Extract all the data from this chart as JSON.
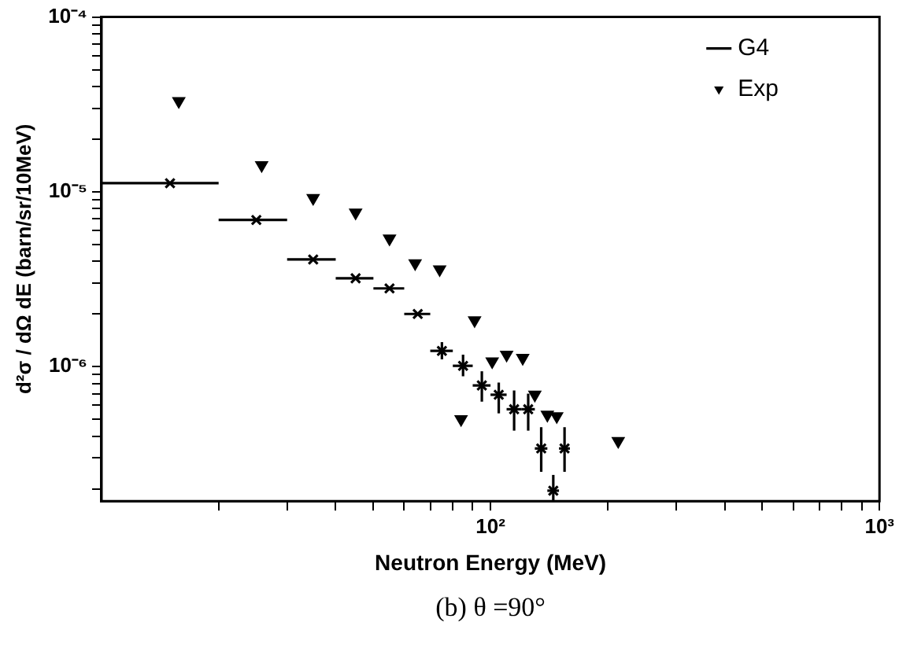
{
  "chart_data": {
    "type": "scatter",
    "xlabel": "Neutron Energy (MeV)",
    "ylabel": "d²σ / dΩ dE (barn/sr/10MeV)",
    "log": "xy",
    "grid": false,
    "legend": "top right",
    "xlim": [
      10,
      1000
    ],
    "ylim": [
      1.7e-07,
      0.0001
    ],
    "xticks": [
      {
        "value": 20,
        "label": null
      },
      {
        "value": 30,
        "label": null
      },
      {
        "value": 40,
        "label": null
      },
      {
        "value": 50,
        "label": null
      },
      {
        "value": 60,
        "label": null
      },
      {
        "value": 70,
        "label": null
      },
      {
        "value": 80,
        "label": null
      },
      {
        "value": 90,
        "label": null
      },
      {
        "value": 100,
        "label": "10²"
      },
      {
        "value": 200,
        "label": null
      },
      {
        "value": 300,
        "label": null
      },
      {
        "value": 400,
        "label": null
      },
      {
        "value": 500,
        "label": null
      },
      {
        "value": 600,
        "label": null
      },
      {
        "value": 700,
        "label": null
      },
      {
        "value": 800,
        "label": null
      },
      {
        "value": 900,
        "label": null
      },
      {
        "value": 1000,
        "label": "10³"
      }
    ],
    "yticks": [
      {
        "value": 2e-07,
        "label": null
      },
      {
        "value": 3e-07,
        "label": null
      },
      {
        "value": 4e-07,
        "label": null
      },
      {
        "value": 5e-07,
        "label": null
      },
      {
        "value": 6e-07,
        "label": null
      },
      {
        "value": 7e-07,
        "label": null
      },
      {
        "value": 8e-07,
        "label": null
      },
      {
        "value": 9e-07,
        "label": null
      },
      {
        "value": 1e-06,
        "label": "10⁻⁶"
      },
      {
        "value": 2e-06,
        "label": null
      },
      {
        "value": 3e-06,
        "label": null
      },
      {
        "value": 4e-06,
        "label": null
      },
      {
        "value": 5e-06,
        "label": null
      },
      {
        "value": 6e-06,
        "label": null
      },
      {
        "value": 7e-06,
        "label": null
      },
      {
        "value": 8e-06,
        "label": null
      },
      {
        "value": 9e-06,
        "label": null
      },
      {
        "value": 1e-05,
        "label": "10⁻⁵"
      },
      {
        "value": 2e-05,
        "label": null
      },
      {
        "value": 3e-05,
        "label": null
      },
      {
        "value": 4e-05,
        "label": null
      },
      {
        "value": 5e-05,
        "label": null
      },
      {
        "value": 6e-05,
        "label": null
      },
      {
        "value": 7e-05,
        "label": null
      },
      {
        "value": 8e-05,
        "label": null
      },
      {
        "value": 9e-05,
        "label": null
      },
      {
        "value": 0.0001,
        "label": "10⁻⁴"
      }
    ],
    "annotations": [
      "(b) θ =90°"
    ],
    "series": [
      {
        "name": "G4",
        "color": "#000000",
        "marker": "cross",
        "x": [
          15,
          25,
          35,
          45,
          55,
          65,
          75,
          85,
          95,
          105,
          115,
          125,
          135,
          145,
          155
        ],
        "values": [
          1.12e-05,
          6.9e-06,
          4.1e-06,
          3.2e-06,
          2.8e-06,
          2e-06,
          1.23e-06,
          1.01e-06,
          7.8e-07,
          6.9e-07,
          5.7e-07,
          5.7e-07,
          3.4e-07,
          1.95e-07,
          3.4e-07
        ],
        "xerrors": [
          [
            10,
            20
          ],
          [
            20,
            30
          ],
          [
            30,
            40
          ],
          [
            40,
            50
          ],
          [
            50,
            60
          ],
          [
            60,
            70
          ],
          [
            70,
            80
          ],
          [
            80,
            90
          ],
          [
            90,
            100
          ],
          [
            100,
            110
          ],
          [
            110,
            120
          ],
          [
            120,
            130
          ],
          [
            130,
            140
          ],
          [
            140,
            150
          ],
          [
            150,
            160
          ]
        ],
        "errors": [
          null,
          null,
          null,
          null,
          null,
          null,
          [
            1.1e-06,
            1.38e-06
          ],
          [
            8.8e-07,
            1.17e-06
          ],
          [
            6.3e-07,
            9.4e-07
          ],
          [
            5.4e-07,
            8.1e-07
          ],
          [
            4.3e-07,
            7.3e-07
          ],
          [
            4.3e-07,
            7e-07
          ],
          [
            2.5e-07,
            4.5e-07
          ],
          [
            1.7e-07,
            2.4e-07
          ],
          [
            2.5e-07,
            4.5e-07
          ]
        ]
      },
      {
        "name": "Exp",
        "color": "#000000",
        "marker": "triangle",
        "x": [
          15.8,
          25.8,
          35,
          45,
          55,
          64,
          74,
          84,
          91,
          101,
          110,
          121,
          130,
          140,
          148,
          213
        ],
        "values": [
          3.3e-05,
          1.42e-05,
          9.2e-06,
          7.6e-06,
          5.4e-06,
          3.9e-06,
          3.6e-06,
          5e-07,
          1.84e-06,
          1.07e-06,
          1.17e-06,
          1.12e-06,
          6.9e-07,
          5.3e-07,
          5.2e-07,
          3.75e-07
        ]
      }
    ]
  }
}
